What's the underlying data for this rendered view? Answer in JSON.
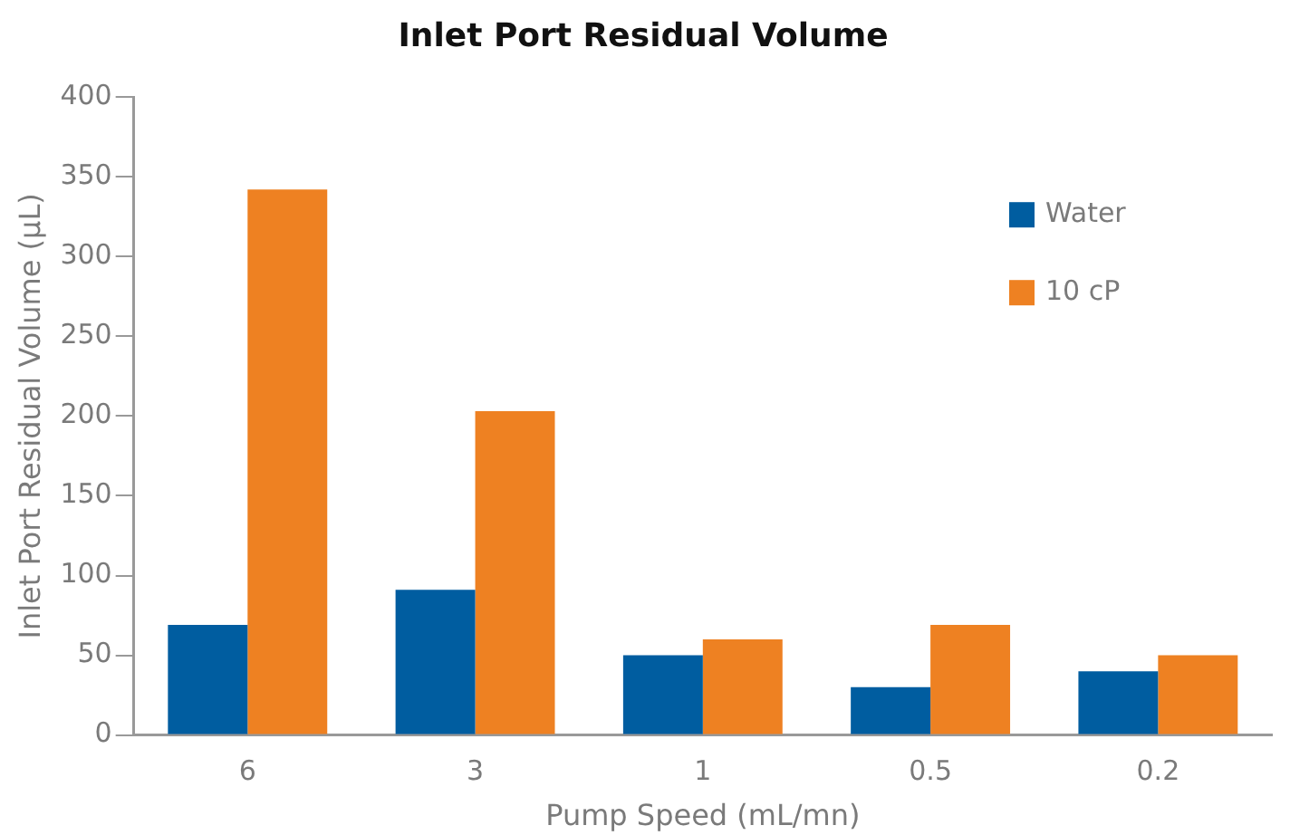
{
  "chart_data": {
    "type": "bar",
    "title": "Inlet Port Residual Volume",
    "xlabel": "Pump Speed (mL/mn)",
    "ylabel": "Inlet Port Residual Volume (µL)",
    "categories": [
      "6",
      "3",
      "1",
      "0.5",
      "0.2"
    ],
    "series": [
      {
        "name": "Water",
        "color": "#005da0",
        "values": [
          69,
          91,
          50,
          30,
          40
        ]
      },
      {
        "name": "10 cP",
        "color": "#ee8122",
        "values": [
          342,
          203,
          60,
          69,
          50
        ]
      }
    ],
    "ylim": [
      0,
      400
    ],
    "yticks": [
      0,
      50,
      100,
      150,
      200,
      250,
      300,
      350,
      400
    ],
    "grid": false,
    "legend": "top right"
  }
}
